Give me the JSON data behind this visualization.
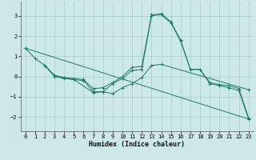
{
  "title": "",
  "xlabel": "Humidex (Indice chaleur)",
  "xlim": [
    -0.5,
    23.5
  ],
  "ylim": [
    -2.7,
    3.7
  ],
  "yticks": [
    -2,
    -1,
    0,
    1,
    2,
    3
  ],
  "xticks": [
    0,
    1,
    2,
    3,
    4,
    5,
    6,
    7,
    8,
    9,
    10,
    11,
    12,
    13,
    14,
    15,
    16,
    17,
    18,
    19,
    20,
    21,
    22,
    23
  ],
  "bg_color": "#cce8e8",
  "grid_color": "#aacccc",
  "line_color": "#1a7a6a",
  "lines": [
    {
      "x": [
        0,
        1,
        2,
        3,
        4,
        5,
        6,
        7,
        8,
        9,
        10,
        11,
        12,
        13,
        14,
        15,
        16,
        17,
        18,
        19,
        20,
        21,
        22,
        23
      ],
      "y": [
        1.4,
        0.9,
        0.55,
        0.0,
        -0.1,
        -0.15,
        -0.2,
        -0.75,
        -0.75,
        -0.35,
        -0.1,
        0.3,
        0.35,
        3.0,
        3.05,
        2.65,
        1.75,
        0.35,
        0.35,
        -0.35,
        -0.45,
        -0.55,
        -0.7,
        -2.1
      ]
    },
    {
      "x": [
        2,
        3,
        4,
        5,
        6,
        7,
        8,
        9,
        10,
        11,
        12,
        13,
        14,
        15,
        16,
        17,
        18,
        19,
        20,
        21,
        22,
        23
      ],
      "y": [
        0.55,
        0.05,
        -0.05,
        -0.1,
        -0.15,
        -0.6,
        -0.55,
        -0.3,
        0.0,
        0.45,
        0.5,
        3.05,
        3.1,
        2.7,
        1.8,
        0.35,
        0.35,
        -0.3,
        -0.4,
        -0.45,
        -0.6,
        -2.05
      ]
    },
    {
      "x": [
        2,
        3,
        4,
        5,
        7,
        8,
        9,
        10,
        11,
        12,
        13,
        14,
        23
      ],
      "y": [
        0.55,
        0.05,
        -0.05,
        -0.15,
        -0.8,
        -0.75,
        -0.85,
        -0.55,
        -0.35,
        -0.05,
        0.55,
        0.6,
        -0.65
      ]
    },
    {
      "x": [
        0,
        23
      ],
      "y": [
        1.4,
        -2.1
      ]
    }
  ]
}
